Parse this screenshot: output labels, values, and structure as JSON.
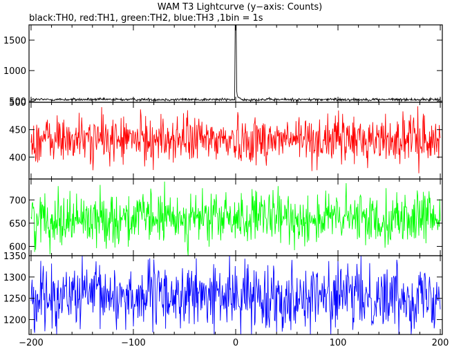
{
  "title": "WAM T3 Lightcurve (y−axis: Counts)",
  "subtitle": "black:TH0, red:TH1, green:TH2, blue:TH3 ,1bin = 1s",
  "x_tick_labels": [
    "−200",
    "−100",
    "0",
    "100",
    "200"
  ],
  "chart_data": [
    {
      "type": "line",
      "series": [
        {
          "name": "TH0",
          "color": "#000000",
          "mean": 525,
          "noise": 12,
          "peak": {
            "x": 0,
            "y": 1760
          }
        }
      ],
      "xlim": [
        -202,
        202
      ],
      "ylim": [
        480,
        1750
      ],
      "y_ticks": [
        500,
        1000,
        1500
      ],
      "y_tick_labels": [
        "500",
        "1000",
        "1500"
      ]
    },
    {
      "type": "line",
      "series": [
        {
          "name": "TH1",
          "color": "#ff0000",
          "mean": 432,
          "noise": 22,
          "min": 360,
          "max": 500
        }
      ],
      "xlim": [
        -202,
        202
      ],
      "ylim": [
        360,
        500
      ],
      "y_ticks": [
        400,
        450,
        500
      ],
      "y_tick_labels": [
        "400",
        "450",
        "500"
      ]
    },
    {
      "type": "line",
      "series": [
        {
          "name": "TH2",
          "color": "#00ff00",
          "mean": 660,
          "noise": 28,
          "min": 580,
          "max": 745
        }
      ],
      "xlim": [
        -202,
        202
      ],
      "ylim": [
        580,
        745
      ],
      "y_ticks": [
        600,
        650,
        700
      ],
      "y_tick_labels": [
        "600",
        "650",
        "700"
      ]
    },
    {
      "type": "line",
      "series": [
        {
          "name": "TH3",
          "color": "#0000ff",
          "mean": 1255,
          "noise": 38,
          "min": 1165,
          "max": 1350
        }
      ],
      "xlim": [
        -202,
        202
      ],
      "ylim": [
        1165,
        1350
      ],
      "y_ticks": [
        1200,
        1250,
        1300,
        1350
      ],
      "y_tick_labels": [
        "1200",
        "1250",
        "1300",
        "1350"
      ]
    }
  ]
}
